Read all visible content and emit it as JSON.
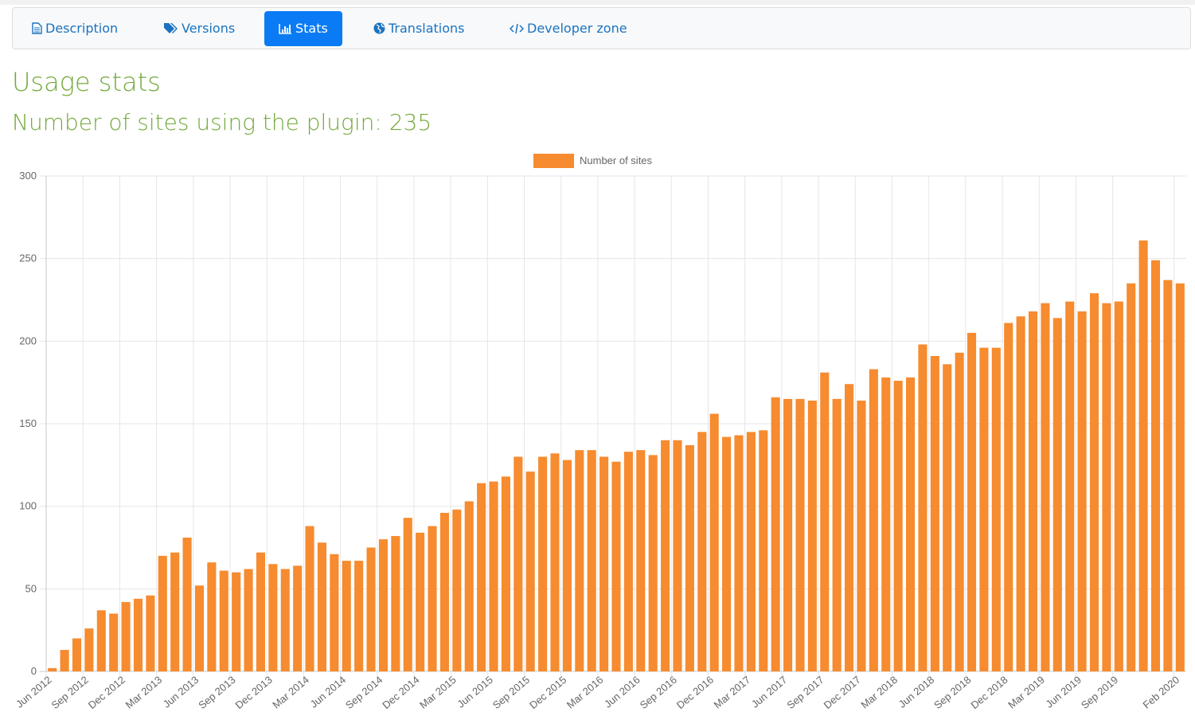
{
  "tabs": [
    "Description",
    "Versions",
    "Stats",
    "Translations",
    "Developer zone"
  ],
  "active_tab": 2,
  "page": {
    "heading": "Usage stats",
    "subtitle": "Number of sites using the plugin: 235"
  },
  "chart_data": {
    "type": "bar",
    "categories": [
      "Jun 2012",
      null,
      null,
      "Sep 2012",
      null,
      null,
      "Dec 2012",
      null,
      null,
      "Mar 2013",
      null,
      null,
      "Jun 2013",
      null,
      null,
      "Sep 2013",
      null,
      null,
      "Dec 2013",
      null,
      null,
      "Mar 2014",
      null,
      null,
      "Jun 2014",
      null,
      null,
      "Sep 2014",
      null,
      null,
      "Dec 2014",
      null,
      null,
      "Mar 2015",
      null,
      null,
      "Jun 2015",
      null,
      null,
      "Sep 2015",
      null,
      null,
      "Dec 2015",
      null,
      null,
      "Mar 2016",
      null,
      null,
      "Jun 2016",
      null,
      null,
      "Sep 2016",
      null,
      null,
      "Dec 2016",
      null,
      null,
      "Mar 2017",
      null,
      null,
      "Jun 2017",
      null,
      null,
      "Sep 2017",
      null,
      null,
      "Dec 2017",
      null,
      null,
      "Mar 2018",
      null,
      null,
      "Jun 2018",
      null,
      null,
      "Sep 2018",
      null,
      null,
      "Dec 2018",
      null,
      null,
      "Mar 2019",
      null,
      null,
      "Jun 2019",
      null,
      null,
      "Sep 2019",
      null,
      null,
      null,
      null,
      "Feb 2020"
    ],
    "series": [
      {
        "name": "Number of sites",
        "color": "#f68b2f",
        "values": [
          2,
          13,
          20,
          26,
          37,
          35,
          42,
          44,
          46,
          70,
          72,
          81,
          52,
          66,
          61,
          60,
          62,
          72,
          65,
          62,
          64,
          88,
          78,
          71,
          67,
          67,
          75,
          80,
          82,
          93,
          84,
          88,
          96,
          98,
          103,
          114,
          115,
          118,
          130,
          121,
          130,
          132,
          128,
          134,
          134,
          130,
          127,
          133,
          134,
          131,
          140,
          140,
          137,
          145,
          156,
          142,
          143,
          145,
          146,
          166,
          165,
          165,
          164,
          181,
          165,
          174,
          164,
          183,
          178,
          176,
          178,
          198,
          191,
          186,
          193,
          205,
          196,
          196,
          211,
          215,
          218,
          223,
          214,
          224,
          218,
          229,
          223,
          224,
          235,
          261,
          249,
          237,
          235
        ]
      }
    ],
    "ylim": [
      0,
      300
    ],
    "yticks": [
      0,
      50,
      100,
      150,
      200,
      250,
      300
    ],
    "grid": true,
    "legend": "top"
  }
}
